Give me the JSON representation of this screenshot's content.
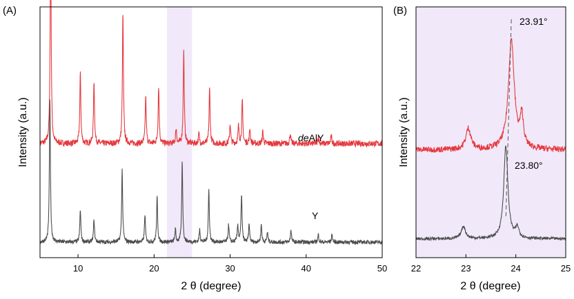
{
  "chart_data": [
    {
      "panel": "(A)",
      "type": "line",
      "xlabel": "2 θ (degree)",
      "ylabel": "Intensity (a.u.)",
      "xlim": [
        5,
        50
      ],
      "xticks": [
        10,
        20,
        30,
        40,
        50
      ],
      "grid": false,
      "highlight_band": {
        "x": [
          21.7,
          25.0
        ],
        "color": "#f1e9f9"
      },
      "series": [
        {
          "name": "deAlY",
          "color": "#e5393f",
          "baseline": 0.455,
          "noise": 0.012,
          "peaks": [
            [
              6.4,
              0.86
            ],
            [
              10.3,
              0.28
            ],
            [
              12.1,
              0.25
            ],
            [
              15.9,
              0.52
            ],
            [
              18.9,
              0.19
            ],
            [
              20.6,
              0.23
            ],
            [
              22.9,
              0.06
            ],
            [
              23.9,
              0.37
            ],
            [
              25.9,
              0.04
            ],
            [
              27.3,
              0.22
            ],
            [
              30.0,
              0.08
            ],
            [
              31.1,
              0.07
            ],
            [
              31.6,
              0.17
            ],
            [
              32.6,
              0.06
            ],
            [
              34.3,
              0.05
            ],
            [
              37.9,
              0.04
            ],
            [
              41.6,
              0.03
            ],
            [
              43.3,
              0.03
            ]
          ]
        },
        {
          "name": "Y",
          "color": "#4d4d4d",
          "baseline": 0.062,
          "noise": 0.008,
          "peaks": [
            [
              6.3,
              0.57
            ],
            [
              10.3,
              0.13
            ],
            [
              12.1,
              0.09
            ],
            [
              15.8,
              0.29
            ],
            [
              18.8,
              0.11
            ],
            [
              20.4,
              0.18
            ],
            [
              22.8,
              0.05
            ],
            [
              23.7,
              0.32
            ],
            [
              26.0,
              0.05
            ],
            [
              27.2,
              0.21
            ],
            [
              29.8,
              0.07
            ],
            [
              31.0,
              0.07
            ],
            [
              31.5,
              0.19
            ],
            [
              32.5,
              0.07
            ],
            [
              34.1,
              0.07
            ],
            [
              34.9,
              0.04
            ],
            [
              38.0,
              0.05
            ],
            [
              41.6,
              0.03
            ],
            [
              43.4,
              0.03
            ]
          ]
        }
      ],
      "labels": [
        {
          "text_italic": "de",
          "text": "AlY",
          "series": "deAlY",
          "x": 43.0
        },
        {
          "text": "Y",
          "series": "Y",
          "x": 42.0
        }
      ]
    },
    {
      "panel": "(B)",
      "type": "line",
      "xlabel": "2 θ (degree)",
      "ylabel": "Intensity (a.u.)",
      "xlim": [
        22,
        25
      ],
      "xticks": [
        22,
        23,
        24,
        25
      ],
      "grid": false,
      "background": "#f1e9f9",
      "series": [
        {
          "name": "deAlY",
          "color": "#e5393f",
          "baseline": 0.43,
          "noise": 0.012,
          "peaks": [
            [
              23.05,
              0.085,
              0.06
            ],
            [
              23.91,
              0.44,
              0.07
            ],
            [
              24.12,
              0.12,
              0.04
            ]
          ]
        },
        {
          "name": "Y",
          "color": "#4d4d4d",
          "baseline": 0.075,
          "noise": 0.006,
          "peaks": [
            [
              22.95,
              0.05,
              0.05
            ],
            [
              23.8,
              0.37,
              0.05
            ],
            [
              24.03,
              0.04,
              0.04
            ]
          ]
        }
      ],
      "annotations": [
        {
          "text": "23.91°",
          "x": 23.91
        },
        {
          "text": "23.80°",
          "x": 23.8
        }
      ]
    }
  ]
}
